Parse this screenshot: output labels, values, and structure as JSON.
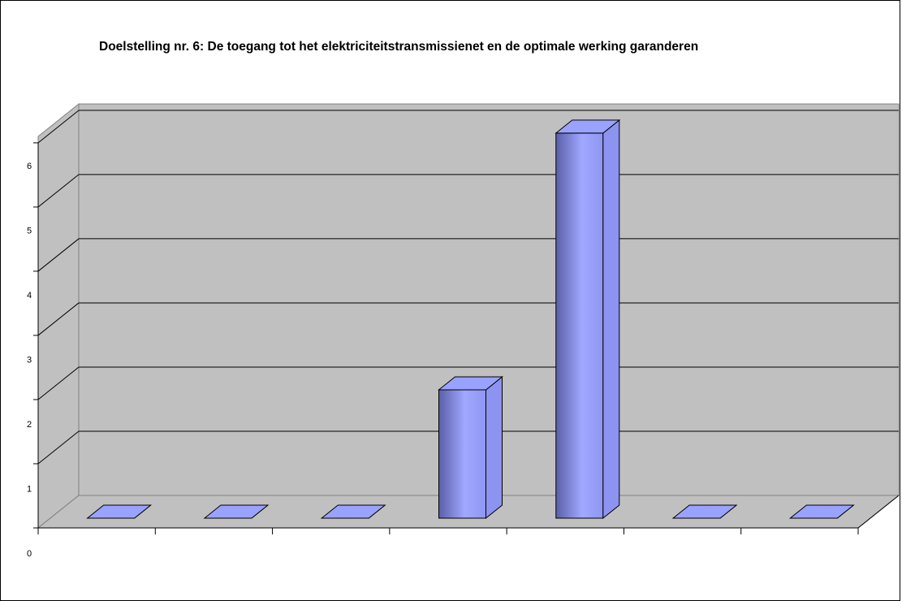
{
  "chart_data": {
    "type": "bar",
    "title": "Doelstelling nr. 6: De toegang tot het elektriciteitstransmissienet en de optimale werking garanderen",
    "categories": [
      "",
      "",
      "",
      "",
      "",
      "",
      ""
    ],
    "values": [
      0,
      0,
      0,
      2,
      6,
      0,
      0
    ],
    "ylim": [
      0,
      6
    ],
    "y_ticks": [
      "0",
      "1",
      "2",
      "3",
      "4",
      "5",
      "6"
    ],
    "grid": true,
    "legend": "none",
    "three_d": true,
    "colors": {
      "wall": "#c0c0c0",
      "bar_light": "#a0a8ff",
      "bar_dark": "#5a5fa8",
      "bar_side": "#8c93f0",
      "bar_top": "#9aa2ff"
    }
  }
}
